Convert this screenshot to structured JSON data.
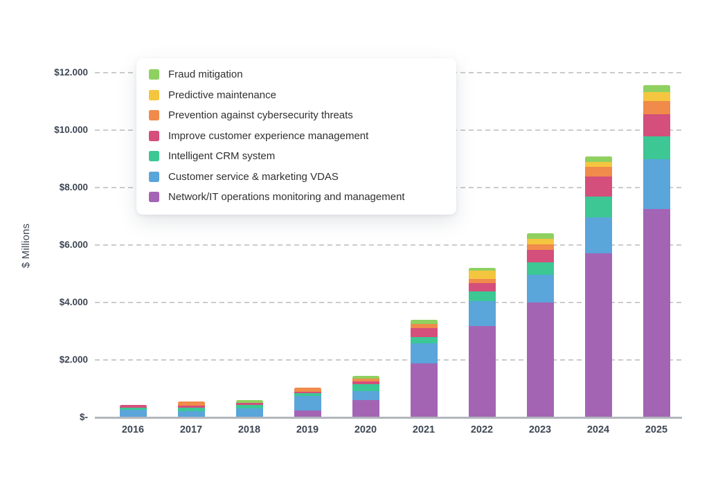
{
  "chart_data": {
    "type": "bar",
    "stacked": true,
    "title": "",
    "xlabel": "",
    "ylabel": "$ Millions",
    "ylim": [
      0,
      12000
    ],
    "grid": "horizontal-dashed",
    "legend_position": "top-left",
    "legend_order": "reverse-of-stacking (top label = topmost segment)",
    "categories": [
      "2016",
      "2017",
      "2018",
      "2019",
      "2020",
      "2021",
      "2022",
      "2023",
      "2024",
      "2025"
    ],
    "y_axis": {
      "title": "$ Millions",
      "ticks": [
        {
          "label": "$-",
          "value": 0
        },
        {
          "label": "$2.000",
          "value": 2000
        },
        {
          "label": "$4.000",
          "value": 4000
        },
        {
          "label": "$6.000",
          "value": 6000
        },
        {
          "label": "$8.000",
          "value": 8000
        },
        {
          "label": "$10.000",
          "value": 10000
        },
        {
          "label": "$12.000",
          "value": 12000
        }
      ]
    },
    "series": [
      {
        "name": "Network/IT operations monitoring and management",
        "color": "#a464b4",
        "values": [
          0,
          0,
          0,
          240,
          600,
          1890,
          3170,
          4000,
          5710,
          7260
        ]
      },
      {
        "name": "Customer service & marketing VDAS",
        "color": "#5aa5da",
        "values": [
          260,
          220,
          310,
          500,
          320,
          680,
          870,
          970,
          1260,
          1720
        ]
      },
      {
        "name": "Intelligent CRM system",
        "color": "#3cc795",
        "values": [
          90,
          120,
          120,
          100,
          240,
          220,
          340,
          435,
          725,
          800
        ]
      },
      {
        "name": "Improve customer experience management",
        "color": "#d44f7b",
        "values": [
          90,
          70,
          70,
          50,
          95,
          315,
          290,
          435,
          680,
          775
        ]
      },
      {
        "name": "Prevention against cybersecurity threats",
        "color": "#f08b4b",
        "values": [
          0,
          140,
          0,
          140,
          95,
          145,
          145,
          170,
          340,
          460
        ]
      },
      {
        "name": "Predictive maintenance",
        "color": "#f4c63f",
        "values": [
          0,
          0,
          0,
          0,
          0,
          0,
          290,
          195,
          170,
          315
        ]
      },
      {
        "name": "Fraud mitigation",
        "color": "#8fd161",
        "values": [
          0,
          0,
          100,
          0,
          100,
          145,
          95,
          195,
          195,
          240
        ]
      }
    ]
  }
}
